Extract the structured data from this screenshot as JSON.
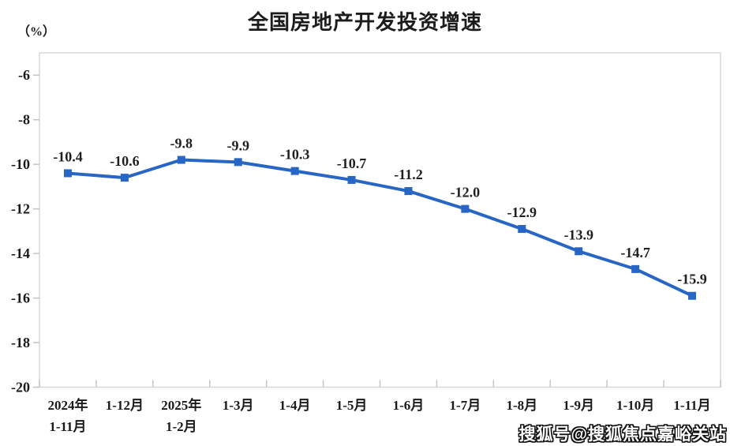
{
  "header": {
    "title": "全国房地产开发投资增速",
    "unit_label": "（%）"
  },
  "watermark": {
    "text": "搜狐号@搜狐焦点嘉峪关站"
  },
  "chart_data": {
    "type": "line",
    "title": "全国房地产开发投资增速",
    "ylabel": "（%）",
    "xlabel": "",
    "categories": [
      "2024年\n1-11月",
      "1-12月",
      "2025年\n1-2月",
      "1-3月",
      "1-4月",
      "1-5月",
      "1-6月",
      "1-7月",
      "1-8月",
      "1-9月",
      "1-10月",
      "1-11月"
    ],
    "values": [
      -10.4,
      -10.6,
      -9.8,
      -9.9,
      -10.3,
      -10.7,
      -11.2,
      -12.0,
      -12.9,
      -13.9,
      -14.7,
      -15.9
    ],
    "data_labels": [
      "-10.4",
      "-10.6",
      "-9.8",
      "-9.9",
      "-10.3",
      "-10.7",
      "-11.2",
      "-12.0",
      "-12.9",
      "-13.9",
      "-14.7",
      "-15.9"
    ],
    "ylim": [
      -20,
      -5
    ],
    "yticks": [
      -6,
      -8,
      -10,
      -12,
      -14,
      -16,
      -18,
      -20
    ],
    "ytick_labels": [
      "-6",
      "-8",
      "-10",
      "-12",
      "-14",
      "-16",
      "-18",
      "-20"
    ],
    "grid": false,
    "legend_position": "none",
    "marker": "square",
    "colors": {
      "line": "#2766c4",
      "marker": "#2766c4",
      "data_label": "#1f1f1f",
      "axis_text": "#1a1a1a",
      "plot_border": "#d9d9d9",
      "tick": "#c4c4c4"
    }
  }
}
